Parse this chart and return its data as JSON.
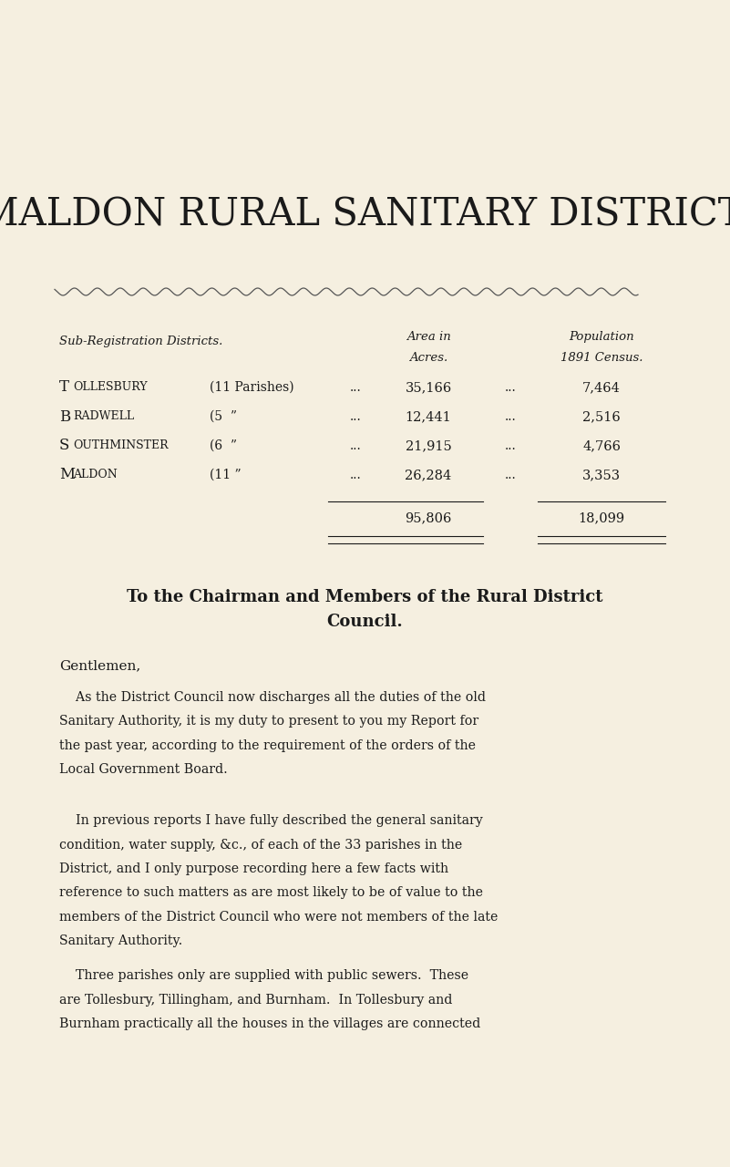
{
  "background_color": "#f5efe0",
  "title": "MALDON RURAL SANITARY DISTRICT.",
  "table_header_italic": "Sub-Registration Districts.",
  "table_rows": [
    {
      "name": "TOLLESBURY",
      "parishes": "(11 Parishes)",
      "dots": "...",
      "acres": "35,166",
      "dots2": "...",
      "pop": "7,464"
    },
    {
      "name": "BRADWELL",
      "parishes": "(5  ”",
      "dots": "...",
      "acres": "12,441",
      "dots2": "...",
      "pop": "2,516"
    },
    {
      "name": "SOUTHMINSTER",
      "parishes": "(6  ”",
      "dots": "...",
      "acres": "21,915",
      "dots2": "...",
      "pop": "4,766"
    },
    {
      "name": "MALDON",
      "parishes": "(11 ”",
      "dots": "...",
      "acres": "26,284",
      "dots2": "...",
      "pop": "3,353"
    }
  ],
  "total_acres": "95,806",
  "total_pop": "18,099",
  "heading2_line1": "To the Chairman and Members of the Rural District",
  "heading2_line2": "Council.",
  "gentlemen": "Gentlemen,",
  "para1_lines": [
    "    As the District Council now discharges all the duties of the old",
    "Sanitary Authority, it is my duty to present to you my Report for",
    "the past year, according to the requirement of the orders of the",
    "Local Government Board."
  ],
  "para2_lines": [
    "    In previous reports I have fully described the general sanitary",
    "condition, water supply, &c., of each of the 33 parishes in the",
    "District, and I only purpose recording here a few facts with",
    "reference to such matters as are most likely to be of value to the",
    "members of the District Council who were not members of the late",
    "Sanitary Authority."
  ],
  "para3_lines": [
    "    Three parishes only are supplied with public sewers.  These",
    "are Tollesbury, Tillingham, and Burnham.  In Tollesbury and",
    "Burnham practically all the houses in the villages are connected"
  ],
  "text_color": "#1a1a1a",
  "fig_width": 8.01,
  "fig_height": 12.8,
  "dpi": 100
}
